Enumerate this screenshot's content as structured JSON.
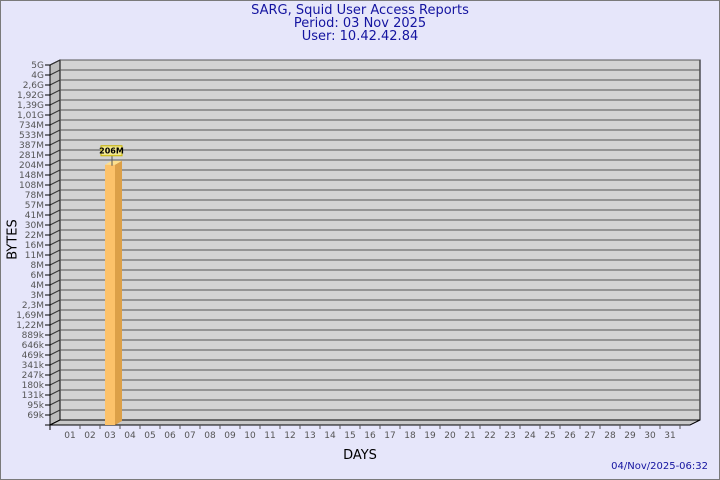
{
  "header": {
    "title": "SARG, Squid User Access Reports",
    "period": "Period: 03 Nov 2025",
    "user": "User: 10.42.42.84"
  },
  "footer": {
    "timestamp": "04/Nov/2025-06:32"
  },
  "colors": {
    "bar_front": "#fcc26a",
    "bar_side": "#dca048",
    "bar_top": "#fde08c",
    "plot_bg": "#d3d3d3",
    "title": "#1414a0"
  },
  "chart_data": {
    "type": "bar",
    "xlabel": "DAYS",
    "ylabel": "BYTES",
    "y_scale": "log",
    "grid": true,
    "categories": [
      "01",
      "02",
      "03",
      "04",
      "05",
      "06",
      "07",
      "08",
      "09",
      "10",
      "11",
      "12",
      "13",
      "14",
      "15",
      "16",
      "17",
      "18",
      "19",
      "20",
      "21",
      "22",
      "23",
      "24",
      "25",
      "26",
      "27",
      "28",
      "29",
      "30",
      "31"
    ],
    "y_ticks": [
      "5G",
      "4G",
      "2,6G",
      "1,92G",
      "1,39G",
      "1,01G",
      "734M",
      "533M",
      "387M",
      "281M",
      "204M",
      "148M",
      "108M",
      "78M",
      "57M",
      "41M",
      "30M",
      "22M",
      "16M",
      "11M",
      "8M",
      "6M",
      "4M",
      "3M",
      "2,3M",
      "1,69M",
      "1,22M",
      "889k",
      "646k",
      "469k",
      "341k",
      "247k",
      "180k",
      "131k",
      "95k",
      "69k"
    ],
    "bars": [
      {
        "category": "03",
        "value": "206M",
        "value_bytes": 206000000
      }
    ]
  }
}
